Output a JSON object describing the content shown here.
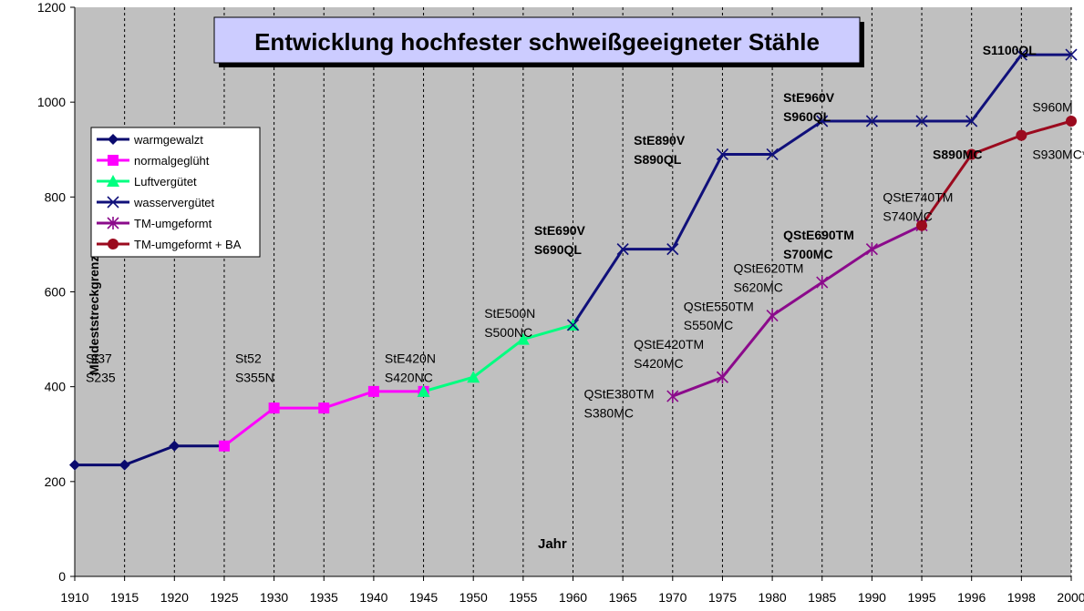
{
  "chart_data": {
    "type": "line",
    "title": "Entwicklung hochfester schweißgeeigneter Stähle",
    "xlabel": "Jahr",
    "ylabel": "Mindeststreckgrenze",
    "ylim": [
      0,
      1200
    ],
    "yticks": [
      "0",
      "200",
      "400",
      "600",
      "800",
      "1000",
      "1200"
    ],
    "categories": [
      "1910",
      "1915",
      "1920",
      "1925",
      "1930",
      "1935",
      "1940",
      "1945",
      "1950",
      "1955",
      "1960",
      "1965",
      "1970",
      "1975",
      "1980",
      "1985",
      "1990",
      "1995",
      "1996",
      "1998",
      "2000"
    ],
    "grid": true,
    "legend_position": "left",
    "plot_bg": "#c0c0c0",
    "series": [
      {
        "name": "warmgewalzt",
        "color": "#0a0a6e",
        "marker": "diamond",
        "points": [
          [
            "1910",
            235
          ],
          [
            "1915",
            235
          ],
          [
            "1920",
            275
          ],
          [
            "1925",
            275
          ]
        ]
      },
      {
        "name": "normalgeglüht",
        "color": "#ff00ff",
        "marker": "square",
        "points": [
          [
            "1925",
            275
          ],
          [
            "1930",
            355
          ],
          [
            "1935",
            355
          ],
          [
            "1940",
            390
          ],
          [
            "1945",
            390
          ]
        ]
      },
      {
        "name": "Luftvergütet",
        "color": "#00ff80",
        "marker": "triangle",
        "points": [
          [
            "1945",
            390
          ],
          [
            "1950",
            420
          ],
          [
            "1955",
            500
          ],
          [
            "1960",
            530
          ]
        ]
      },
      {
        "name": "wasservergütet",
        "color": "#10107a",
        "marker": "x",
        "points": [
          [
            "1960",
            530
          ],
          [
            "1965",
            690
          ],
          [
            "1970",
            690
          ],
          [
            "1975",
            890
          ],
          [
            "1980",
            890
          ],
          [
            "1985",
            960
          ],
          [
            "1990",
            960
          ],
          [
            "1995",
            960
          ],
          [
            "1996",
            960
          ],
          [
            "1998",
            1100
          ],
          [
            "2000",
            1100
          ]
        ]
      },
      {
        "name": "TM-umgeformt",
        "color": "#8b0a8b",
        "marker": "star",
        "points": [
          [
            "1970",
            380
          ],
          [
            "1975",
            420
          ],
          [
            "1980",
            550
          ],
          [
            "1985",
            620
          ],
          [
            "1990",
            690
          ],
          [
            "1995",
            740
          ]
        ]
      },
      {
        "name": "TM-umgeformt + BA",
        "color": "#9b0a1e",
        "marker": "circle",
        "points": [
          [
            "1995",
            740
          ],
          [
            "1996",
            890
          ],
          [
            "1998",
            930
          ],
          [
            "2000",
            960
          ]
        ]
      }
    ],
    "annotations": [
      {
        "text": "St37",
        "x": "1910",
        "y": 450,
        "bold": false
      },
      {
        "text": "S235",
        "x": "1910",
        "y": 410,
        "bold": false
      },
      {
        "text": "St52",
        "x": "1925",
        "y": 450,
        "bold": false
      },
      {
        "text": "S355N",
        "x": "1925",
        "y": 410,
        "bold": false
      },
      {
        "text": "StE420N",
        "x": "1940",
        "y": 450,
        "bold": false
      },
      {
        "text": "S420NC",
        "x": "1940",
        "y": 410,
        "bold": false
      },
      {
        "text": "StE500N",
        "x": "1950",
        "y": 545,
        "bold": false
      },
      {
        "text": "S500NC",
        "x": "1950",
        "y": 505,
        "bold": false
      },
      {
        "text": "StE690V",
        "x": "1955",
        "y": 720,
        "bold": true
      },
      {
        "text": "S690QL",
        "x": "1955",
        "y": 680,
        "bold": true
      },
      {
        "text": "StE890V",
        "x": "1965",
        "y": 910,
        "bold": true
      },
      {
        "text": "S890QL",
        "x": "1965",
        "y": 870,
        "bold": true
      },
      {
        "text": "StE960V",
        "x": "1980",
        "y": 1000,
        "bold": true
      },
      {
        "text": "S960QL",
        "x": "1980",
        "y": 960,
        "bold": true
      },
      {
        "text": "S1100QL",
        "x": "1996",
        "y": 1100,
        "bold": true
      },
      {
        "text": "QStE380TM",
        "x": "1960",
        "y": 375,
        "bold": false
      },
      {
        "text": "S380MC",
        "x": "1960",
        "y": 335,
        "bold": false
      },
      {
        "text": "QStE420TM",
        "x": "1965",
        "y": 480,
        "bold": false
      },
      {
        "text": "S420MC",
        "x": "1965",
        "y": 440,
        "bold": false
      },
      {
        "text": "QStE550TM",
        "x": "1970",
        "y": 560,
        "bold": false
      },
      {
        "text": "S550MC",
        "x": "1970",
        "y": 520,
        "bold": false
      },
      {
        "text": "QStE620TM",
        "x": "1975",
        "y": 640,
        "bold": false
      },
      {
        "text": "S620MC",
        "x": "1975",
        "y": 600,
        "bold": false
      },
      {
        "text": "QStE690TM",
        "x": "1980",
        "y": 710,
        "bold": true
      },
      {
        "text": "S700MC",
        "x": "1980",
        "y": 670,
        "bold": true
      },
      {
        "text": "QStE740TM",
        "x": "1990",
        "y": 790,
        "bold": false
      },
      {
        "text": "S740MC",
        "x": "1990",
        "y": 750,
        "bold": false
      },
      {
        "text": "S890MC",
        "x": "1995",
        "y": 880,
        "bold": true
      },
      {
        "text": "S960M",
        "x": "1998",
        "y": 980,
        "bold": false
      },
      {
        "text": "S930MC*",
        "x": "1998",
        "y": 880,
        "bold": false
      }
    ]
  }
}
